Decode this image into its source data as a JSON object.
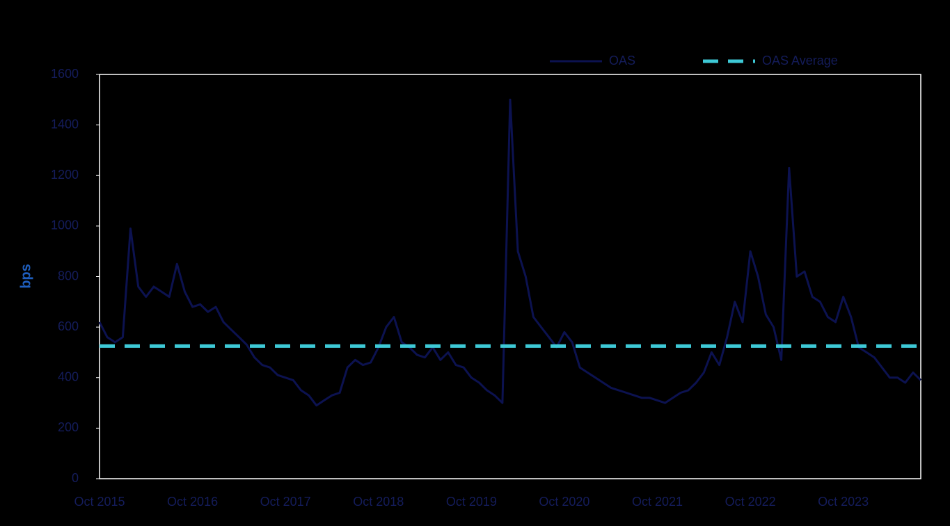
{
  "chart_data": {
    "type": "line",
    "y_label": "bps",
    "categories": [
      "Oct 2015",
      null,
      null,
      null,
      null,
      null,
      null,
      null,
      null,
      null,
      null,
      null,
      "Oct 2016",
      null,
      null,
      null,
      null,
      null,
      null,
      null,
      null,
      null,
      null,
      null,
      "Oct 2017",
      null,
      null,
      null,
      null,
      null,
      null,
      null,
      null,
      null,
      null,
      null,
      "Oct 2018",
      null,
      null,
      null,
      null,
      null,
      null,
      null,
      null,
      null,
      null,
      null,
      "Oct 2019",
      null,
      null,
      null,
      null,
      null,
      null,
      null,
      null,
      null,
      null,
      null,
      "Oct 2020",
      null,
      null,
      null,
      null,
      null,
      null,
      null,
      null,
      null,
      null,
      null,
      "Oct 2021",
      null,
      null,
      null,
      null,
      null,
      null,
      null,
      null,
      null,
      null,
      null,
      "Oct 2022",
      null,
      null,
      null,
      null,
      null,
      null,
      null,
      null,
      null,
      null,
      null,
      "Oct 2023",
      null,
      null,
      null,
      null,
      null,
      null,
      null,
      null,
      null,
      null
    ],
    "series": [
      {
        "name": "OAS",
        "color": "#0c1250",
        "line_style": "solid",
        "values": [
          620,
          560,
          540,
          560,
          990,
          760,
          720,
          760,
          740,
          720,
          850,
          740,
          680,
          690,
          660,
          680,
          620,
          590,
          560,
          530,
          480,
          450,
          440,
          410,
          400,
          390,
          350,
          330,
          290,
          310,
          330,
          340,
          440,
          470,
          450,
          460,
          520,
          600,
          640,
          540,
          520,
          490,
          480,
          520,
          470,
          500,
          450,
          440,
          400,
          380,
          350,
          330,
          300,
          1500,
          900,
          800,
          640,
          600,
          560,
          520,
          580,
          540,
          440,
          420,
          400,
          380,
          360,
          350,
          340,
          330,
          320,
          320,
          310,
          300,
          320,
          340,
          350,
          380,
          420,
          500,
          450,
          560,
          700,
          620,
          900,
          800,
          650,
          600,
          470,
          1230,
          800,
          820,
          720,
          700,
          640,
          620,
          720,
          640,
          520,
          500,
          480,
          440,
          400,
          400,
          380,
          420,
          390
        ]
      },
      {
        "name": "OAS Average",
        "color": "#3ec9d6",
        "line_style": "dashed",
        "values": [
          525,
          525,
          525,
          525,
          525,
          525,
          525,
          525,
          525,
          525,
          525,
          525,
          525,
          525,
          525,
          525,
          525,
          525,
          525,
          525,
          525,
          525,
          525,
          525,
          525,
          525,
          525,
          525,
          525,
          525,
          525,
          525,
          525,
          525,
          525,
          525,
          525,
          525,
          525,
          525,
          525,
          525,
          525,
          525,
          525,
          525,
          525,
          525,
          525,
          525,
          525,
          525,
          525,
          525,
          525,
          525,
          525,
          525,
          525,
          525,
          525,
          525,
          525,
          525,
          525,
          525,
          525,
          525,
          525,
          525,
          525,
          525,
          525,
          525,
          525,
          525,
          525,
          525,
          525,
          525,
          525,
          525,
          525,
          525,
          525,
          525,
          525,
          525,
          525,
          525,
          525,
          525,
          525,
          525,
          525,
          525,
          525,
          525,
          525,
          525,
          525,
          525,
          525,
          525,
          525,
          525,
          525
        ]
      }
    ],
    "ylim": [
      0,
      1600
    ],
    "yticks": [
      0,
      200,
      400,
      600,
      800,
      1000,
      1200,
      1400,
      1600
    ],
    "legend": "top-right"
  }
}
